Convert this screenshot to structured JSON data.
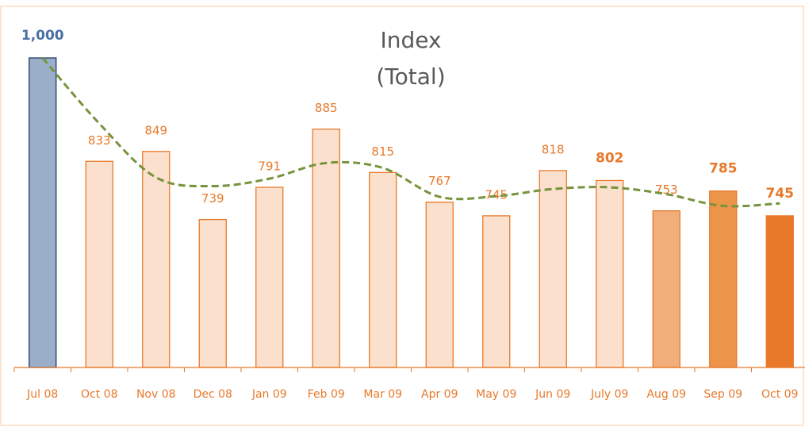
{
  "chart_data": {
    "type": "bar",
    "title": "Index",
    "subtitle": "(Total)",
    "categories": [
      "Jul 08",
      "Oct 08",
      "Nov 08",
      "Dec 08",
      "Jan 09",
      "Feb 09",
      "Mar 09",
      "Apr 09",
      "May 09",
      "Jun 09",
      "July 09",
      "Aug 09",
      "Sep 09",
      "Oct 09"
    ],
    "values": [
      1000,
      833,
      849,
      739,
      791,
      885,
      815,
      767,
      745,
      818,
      802,
      753,
      785,
      745
    ],
    "value_labels": [
      "1,000",
      "833",
      "849",
      "739",
      "791",
      "885",
      "815",
      "767",
      "745",
      "818",
      "802",
      "753",
      "785",
      "745"
    ],
    "colors": [
      "#9aaec9",
      "#fbe1cd",
      "#fbe1cd",
      "#fbe1cd",
      "#fbe1cd",
      "#fbe1cd",
      "#fbe1cd",
      "#fbe1cd",
      "#fbe1cd",
      "#fbe1cd",
      "#fbe1cd",
      "#f1ae7b",
      "#ec944a",
      "#e8792a"
    ],
    "label_bold": [
      true,
      false,
      false,
      false,
      false,
      false,
      false,
      false,
      false,
      false,
      true,
      false,
      true,
      true
    ],
    "ylim": [
      500,
      1000
    ],
    "trend_line": true
  }
}
